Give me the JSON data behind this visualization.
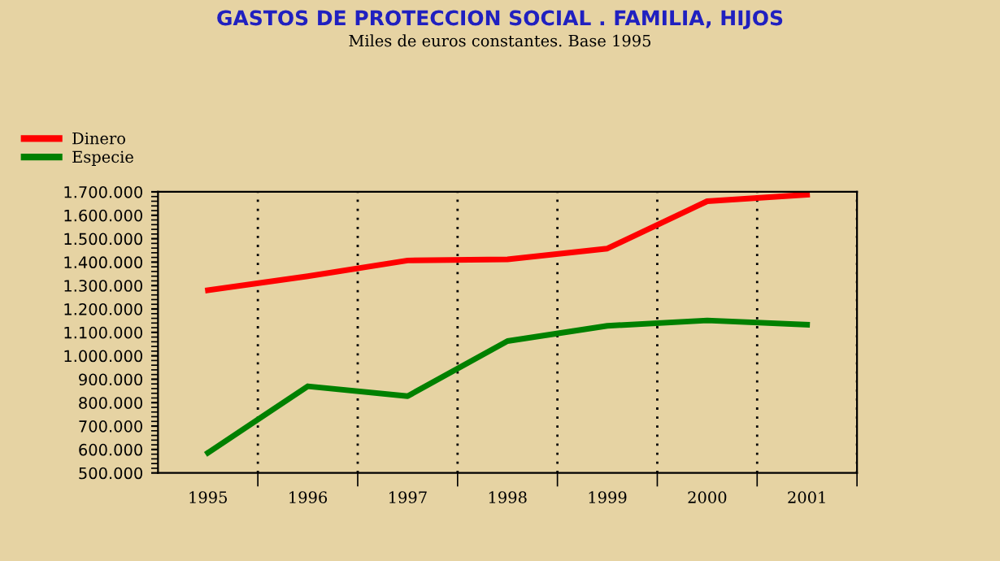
{
  "chart_data": {
    "type": "line",
    "title": "GASTOS DE PROTECCION SOCIAL . FAMILIA, HIJOS",
    "subtitle": "Miles de euros constantes. Base 1995",
    "categories": [
      "1995",
      "1996",
      "1997",
      "1998",
      "1999",
      "2000",
      "2001"
    ],
    "series": [
      {
        "name": "Dinero",
        "color": "#ff0000",
        "values": [
          1280000,
          1340000,
          1407000,
          1412000,
          1458000,
          1660000,
          1688000
        ]
      },
      {
        "name": "Especie",
        "color": "#008000",
        "values": [
          586000,
          870000,
          828000,
          1063000,
          1128000,
          1151000,
          1133000
        ]
      }
    ],
    "ylim": [
      500000,
      1700000
    ],
    "yticks": [
      {
        "value": 500000,
        "label": "500.000"
      },
      {
        "value": 600000,
        "label": "600.000"
      },
      {
        "value": 700000,
        "label": "700.000"
      },
      {
        "value": 800000,
        "label": "800.000"
      },
      {
        "value": 900000,
        "label": "900.000"
      },
      {
        "value": 1000000,
        "label": "1.000.000"
      },
      {
        "value": 1100000,
        "label": "1.100.000"
      },
      {
        "value": 1200000,
        "label": "1.200.000"
      },
      {
        "value": 1300000,
        "label": "1.300.000"
      },
      {
        "value": 1400000,
        "label": "1.400.000"
      },
      {
        "value": 1500000,
        "label": "1.500.000"
      },
      {
        "value": 1600000,
        "label": "1.600.000"
      },
      {
        "value": 1700000,
        "label": "1.700.000"
      }
    ],
    "grid": "x",
    "legend": "top left",
    "marker": "none",
    "line_style": "solid"
  }
}
